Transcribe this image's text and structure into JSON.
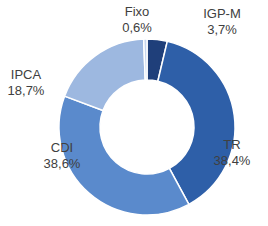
{
  "chart_data": {
    "type": "pie",
    "categories": [
      "IGP-M",
      "TR",
      "CDI",
      "IPCA",
      "Fixo"
    ],
    "values": [
      3.7,
      38.4,
      38.6,
      18.7,
      0.6
    ],
    "value_labels": [
      "3,7%",
      "38,4%",
      "38,6%",
      "18,7%",
      "0,6%"
    ],
    "colors": [
      "#1f3f7a",
      "#2e5fa8",
      "#5a8acc",
      "#9db8e0",
      "#c6d6ee"
    ],
    "data_labels": true
  }
}
